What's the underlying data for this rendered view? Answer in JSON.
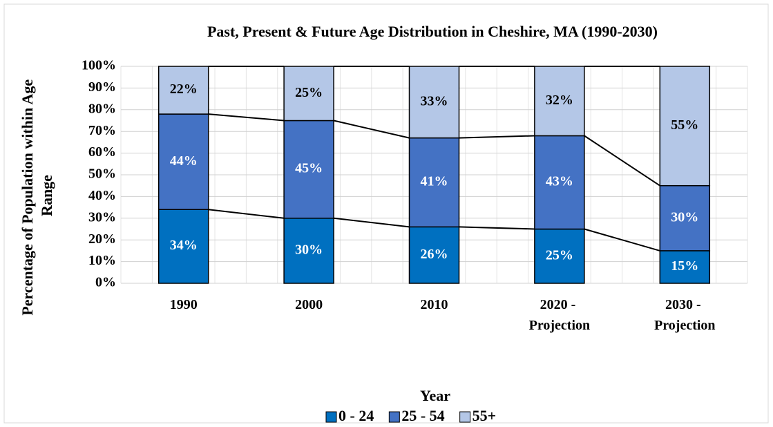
{
  "chart_data": {
    "type": "stacked_bar",
    "title": "Past, Present & Future Age Distribution in Cheshire, MA (1990-2030)",
    "x_label": "Year",
    "y_label": "Percentage of Population within Age Range",
    "categories": [
      "1990",
      "2000",
      "2010",
      "2020 - Projection",
      "2030 - Projection"
    ],
    "series": [
      {
        "name": "0 - 24",
        "color": "#0070c0",
        "values": [
          34,
          30,
          26,
          25,
          15
        ],
        "value_labels": [
          "34%",
          "30%",
          "26%",
          "25%",
          "15%"
        ]
      },
      {
        "name": "25 - 54",
        "color": "#4472c4",
        "values": [
          44,
          45,
          41,
          43,
          30
        ],
        "value_labels": [
          "44%",
          "45%",
          "41%",
          "43%",
          "30%"
        ]
      },
      {
        "name": "55+",
        "color": "#b4c7e7",
        "values": [
          22,
          25,
          33,
          32,
          55
        ],
        "value_labels": [
          "22%",
          "25%",
          "33%",
          "32%",
          "55%"
        ]
      }
    ],
    "ylim": [
      0,
      100
    ],
    "yticks": [
      {
        "value": 0,
        "label": "0%"
      },
      {
        "value": 10,
        "label": "10%"
      },
      {
        "value": 20,
        "label": "20%"
      },
      {
        "value": 30,
        "label": "30%"
      },
      {
        "value": 40,
        "label": "40%"
      },
      {
        "value": 50,
        "label": "50%"
      },
      {
        "value": 60,
        "label": "60%"
      },
      {
        "value": 70,
        "label": "70%"
      },
      {
        "value": 80,
        "label": "80%"
      },
      {
        "value": 90,
        "label": "90%"
      },
      {
        "value": 100,
        "label": "100%"
      }
    ],
    "grid": true,
    "legend": "bottom"
  }
}
